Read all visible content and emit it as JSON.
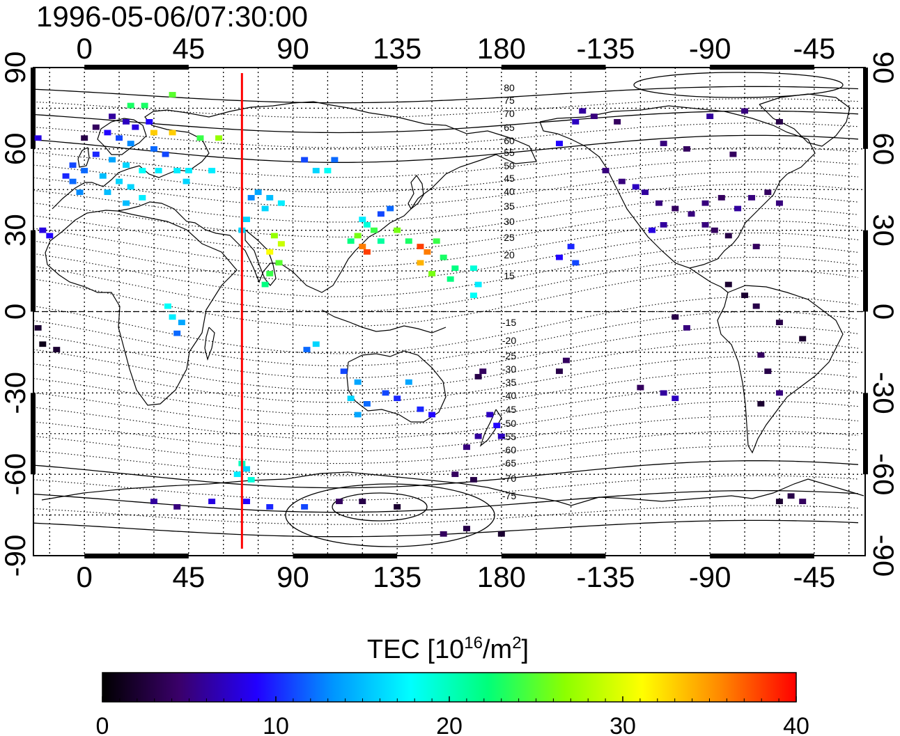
{
  "title": "1996-05-06/07:30:00",
  "lon_ticks_top": [
    "0",
    "45",
    "90",
    "135",
    "180",
    "-135",
    "-90",
    "-45"
  ],
  "lon_ticks_bottom": [
    "0",
    "45",
    "90",
    "135",
    "180",
    "-135",
    "-90",
    "-45"
  ],
  "lat_ticks_left": [
    "90",
    "60",
    "30",
    "0",
    "-30",
    "-60",
    "-90"
  ],
  "lat_ticks_right": [
    "90",
    "60",
    "30",
    "0",
    "-30",
    "-60",
    "-90"
  ],
  "contour_labels_north": [
    "80",
    "75",
    "70",
    "65",
    "60",
    "55",
    "50",
    "45",
    "40",
    "35",
    "30",
    "25",
    "20",
    "15"
  ],
  "contour_labels_south": [
    "-15",
    "-20",
    "-25",
    "-30",
    "-35",
    "-40",
    "-45",
    "-50",
    "-55",
    "-60",
    "-65",
    "-70",
    "-75"
  ],
  "colorbar": {
    "title_prefix": "TEC  [10",
    "title_exp1": "16",
    "title_mid": "/m",
    "title_exp2": "2",
    "title_suffix": "]",
    "ticks": [
      "0",
      "10",
      "20",
      "30",
      "40"
    ],
    "range": [
      0,
      40
    ],
    "colors": [
      "#000000",
      "#3a006a",
      "#2200ff",
      "#0096ff",
      "#00ffff",
      "#00ff7a",
      "#8cff00",
      "#ffff00",
      "#ff8a00",
      "#ff0000"
    ]
  },
  "chart_data": {
    "type": "heatmap",
    "title": "1996-05-06/07:30:00",
    "variable": "TEC",
    "units": "10^16/m^2",
    "x_axis": "longitude",
    "x_range": [
      -22,
      337
    ],
    "y_axis": "latitude",
    "y_range": [
      -90,
      90
    ],
    "meridian_line": {
      "lon": 68,
      "color": "#ff0000"
    },
    "grid": true,
    "color_range": [
      0,
      40
    ],
    "points": [
      [
        10,
        66,
        9
      ],
      [
        15,
        64,
        11
      ],
      [
        20,
        62,
        13
      ],
      [
        5,
        58,
        10
      ],
      [
        12,
        56,
        14
      ],
      [
        18,
        54,
        16
      ],
      [
        25,
        52,
        18
      ],
      [
        8,
        50,
        15
      ],
      [
        15,
        48,
        16
      ],
      [
        0,
        52,
        12
      ],
      [
        -5,
        54,
        11
      ],
      [
        -8,
        50,
        10
      ],
      [
        20,
        46,
        16
      ],
      [
        25,
        42,
        17
      ],
      [
        30,
        60,
        12
      ],
      [
        35,
        58,
        11
      ],
      [
        22,
        68,
        8
      ],
      [
        18,
        70,
        7
      ],
      [
        12,
        72,
        6
      ],
      [
        28,
        70,
        9
      ],
      [
        5,
        68,
        4
      ],
      [
        0,
        64,
        3
      ],
      [
        -5,
        48,
        12
      ],
      [
        -2,
        44,
        13
      ],
      [
        10,
        44,
        15
      ],
      [
        18,
        40,
        15
      ],
      [
        32,
        52,
        17
      ],
      [
        40,
        52,
        17
      ],
      [
        45,
        52,
        17
      ],
      [
        55,
        52,
        17
      ],
      [
        44,
        48,
        16
      ],
      [
        20,
        76,
        23
      ],
      [
        26,
        76,
        23
      ],
      [
        38,
        80,
        25
      ],
      [
        30,
        66,
        33
      ],
      [
        38,
        66,
        33
      ],
      [
        50,
        64,
        24
      ],
      [
        58,
        64,
        27
      ],
      [
        -20,
        64,
        8
      ],
      [
        -18,
        30,
        8
      ],
      [
        -15,
        28,
        9
      ],
      [
        -20,
        -6,
        2
      ],
      [
        -18,
        -12,
        1
      ],
      [
        -12,
        -14,
        2
      ],
      [
        36,
        2,
        18
      ],
      [
        38,
        -2,
        17
      ],
      [
        42,
        -4,
        14
      ],
      [
        40,
        -8,
        12
      ],
      [
        75,
        44,
        14
      ],
      [
        80,
        42,
        15
      ],
      [
        85,
        40,
        17
      ],
      [
        78,
        38,
        16
      ],
      [
        70,
        34,
        16
      ],
      [
        68,
        30,
        16
      ],
      [
        72,
        42,
        13
      ],
      [
        82,
        28,
        27
      ],
      [
        85,
        25,
        29
      ],
      [
        80,
        22,
        31
      ],
      [
        84,
        18,
        25
      ],
      [
        80,
        14,
        24
      ],
      [
        78,
        10,
        22
      ],
      [
        95,
        56,
        11
      ],
      [
        100,
        52,
        16
      ],
      [
        105,
        52,
        18
      ],
      [
        108,
        56,
        12
      ],
      [
        115,
        26,
        22
      ],
      [
        118,
        28,
        26
      ],
      [
        120,
        24,
        36
      ],
      [
        122,
        22,
        38
      ],
      [
        125,
        30,
        24
      ],
      [
        122,
        32,
        19
      ],
      [
        120,
        34,
        17
      ],
      [
        128,
        36,
        11
      ],
      [
        132,
        38,
        12
      ],
      [
        128,
        26,
        21
      ],
      [
        135,
        30,
        26
      ],
      [
        140,
        26,
        23
      ],
      [
        145,
        24,
        38
      ],
      [
        148,
        22,
        36
      ],
      [
        152,
        26,
        24
      ],
      [
        155,
        20,
        23
      ],
      [
        145,
        18,
        34
      ],
      [
        150,
        14,
        26
      ],
      [
        160,
        16,
        22
      ],
      [
        158,
        12,
        22
      ],
      [
        168,
        16,
        19
      ],
      [
        170,
        10,
        17
      ],
      [
        168,
        6,
        18
      ],
      [
        96,
        -14,
        12
      ],
      [
        100,
        -12,
        16
      ],
      [
        112,
        -22,
        11
      ],
      [
        118,
        -26,
        14
      ],
      [
        115,
        -32,
        16
      ],
      [
        118,
        -38,
        14
      ],
      [
        122,
        -34,
        12
      ],
      [
        130,
        -30,
        11
      ],
      [
        135,
        -32,
        10
      ],
      [
        140,
        -26,
        14
      ],
      [
        145,
        -36,
        10
      ],
      [
        150,
        -38,
        9
      ],
      [
        175,
        -38,
        7
      ],
      [
        178,
        -42,
        9
      ],
      [
        180,
        -46,
        7
      ],
      [
        170,
        -46,
        6
      ],
      [
        165,
        -50,
        5
      ],
      [
        160,
        -60,
        4
      ],
      [
        168,
        -62,
        3
      ],
      [
        170,
        -24,
        3
      ],
      [
        172,
        -22,
        4
      ],
      [
        66,
        -60,
        17
      ],
      [
        70,
        -58,
        16
      ],
      [
        72,
        -62,
        19
      ],
      [
        68,
        -56,
        20
      ],
      [
        205,
        20,
        9
      ],
      [
        210,
        24,
        10
      ],
      [
        212,
        18,
        11
      ],
      [
        205,
        -22,
        3
      ],
      [
        208,
        -18,
        4
      ],
      [
        205,
        62,
        9
      ],
      [
        212,
        70,
        7
      ],
      [
        215,
        74,
        6
      ],
      [
        220,
        72,
        5
      ],
      [
        230,
        70,
        4
      ],
      [
        225,
        52,
        5
      ],
      [
        232,
        48,
        5
      ],
      [
        238,
        46,
        7
      ],
      [
        242,
        44,
        6
      ],
      [
        248,
        40,
        5
      ],
      [
        255,
        38,
        4
      ],
      [
        262,
        36,
        5
      ],
      [
        268,
        40,
        5
      ],
      [
        275,
        42,
        4
      ],
      [
        282,
        38,
        6
      ],
      [
        288,
        42,
        5
      ],
      [
        295,
        44,
        4
      ],
      [
        300,
        40,
        5
      ],
      [
        245,
        30,
        8
      ],
      [
        250,
        32,
        6
      ],
      [
        268,
        32,
        5
      ],
      [
        272,
        30,
        4
      ],
      [
        278,
        28,
        3
      ],
      [
        290,
        24,
        4
      ],
      [
        250,
        62,
        5
      ],
      [
        260,
        60,
        4
      ],
      [
        280,
        58,
        4
      ],
      [
        270,
        72,
        6
      ],
      [
        285,
        74,
        5
      ],
      [
        300,
        70,
        3
      ],
      [
        278,
        10,
        2
      ],
      [
        285,
        6,
        2
      ],
      [
        290,
        2,
        3
      ],
      [
        300,
        -4,
        3
      ],
      [
        310,
        -10,
        2
      ],
      [
        292,
        -16,
        4
      ],
      [
        295,
        -22,
        3
      ],
      [
        292,
        -34,
        2
      ],
      [
        300,
        -30,
        5
      ],
      [
        250,
        -30,
        6
      ],
      [
        255,
        -32,
        7
      ],
      [
        240,
        -28,
        4
      ],
      [
        255,
        -2,
        3
      ],
      [
        260,
        -6,
        5
      ],
      [
        30,
        -70,
        6
      ],
      [
        40,
        -72,
        5
      ],
      [
        55,
        -70,
        8
      ],
      [
        70,
        -70,
        9
      ],
      [
        80,
        -72,
        10
      ],
      [
        95,
        -72,
        11
      ],
      [
        110,
        -70,
        4
      ],
      [
        120,
        -70,
        3
      ],
      [
        135,
        -72,
        2
      ],
      [
        155,
        -82,
        4
      ],
      [
        165,
        -80,
        3
      ],
      [
        180,
        -82,
        2
      ],
      [
        305,
        -68,
        3
      ],
      [
        300,
        -70,
        2
      ],
      [
        310,
        -70,
        4
      ]
    ]
  }
}
